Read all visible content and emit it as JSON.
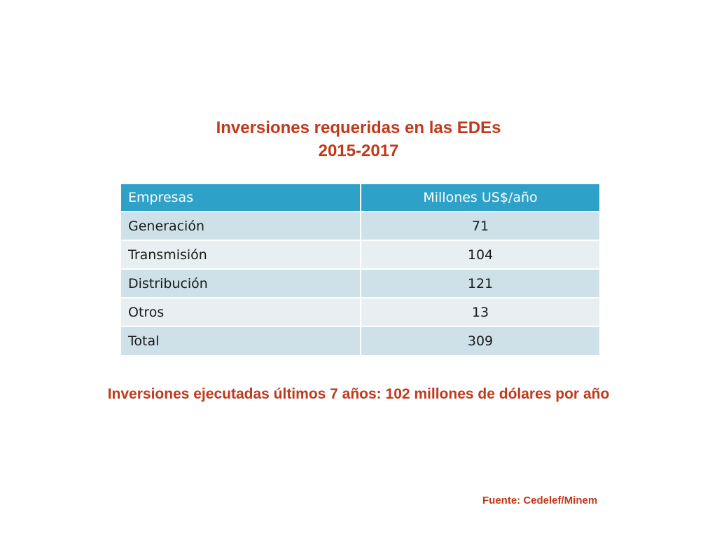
{
  "title": {
    "line1": "Inversiones requeridas en las EDEs",
    "line2": "2015-2017"
  },
  "table": {
    "headers": [
      "Empresas",
      "Millones US$/año"
    ],
    "rows": [
      {
        "name": "Generación",
        "value": "71"
      },
      {
        "name": "Transmisión",
        "value": "104"
      },
      {
        "name": "Distribución",
        "value": "121"
      },
      {
        "name": "Otros",
        "value": "13"
      },
      {
        "name": "Total",
        "value": "309"
      }
    ]
  },
  "note": "Inversiones ejecutadas últimos 7 años:  102 millones de dólares por año",
  "source": "Fuente: Cedelef/Minem",
  "colors": {
    "accent": "#c0391b",
    "header_bg": "#2ea1c9",
    "row_dark": "#cfe1e8",
    "row_light": "#e7eff2"
  }
}
